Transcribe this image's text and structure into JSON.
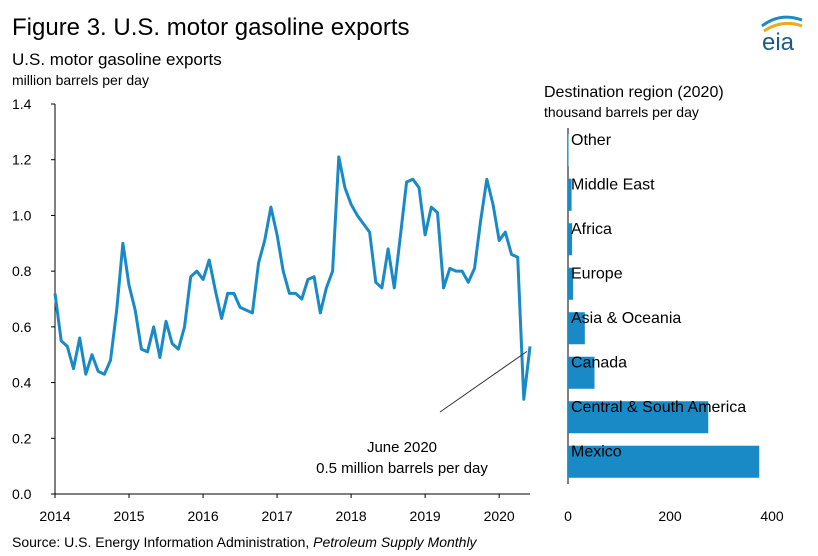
{
  "figure": {
    "title": "Figure 3. U.S. motor gasoline exports",
    "source_prefix": "Source: U.S. Energy Information Administration, ",
    "source_italic": "Petroleum Supply Monthly",
    "logo_text": "eia"
  },
  "colors": {
    "series": "#1a8ac7",
    "annotation_line": "#333333"
  },
  "chart_data": [
    {
      "type": "line",
      "title": "U.S. motor gasoline exports",
      "ylabel": "million barrels per day",
      "ylim": [
        0,
        1.4
      ],
      "yticks": [
        "0.0",
        "0.2",
        "0.4",
        "0.6",
        "0.8",
        "1.0",
        "1.2",
        "1.4"
      ],
      "xtick_labels": [
        "2014",
        "2015",
        "2016",
        "2017",
        "2018",
        "2019",
        "2020"
      ],
      "x_start": "2014-01",
      "x_end": "2020-06",
      "grid": false,
      "series": [
        {
          "values": [
            0.72,
            0.55,
            0.53,
            0.45,
            0.56,
            0.43,
            0.5,
            0.44,
            0.43,
            0.48,
            0.66,
            0.9,
            0.75,
            0.66,
            0.52,
            0.51,
            0.6,
            0.49,
            0.62,
            0.54,
            0.52,
            0.6,
            0.78,
            0.8,
            0.77,
            0.84,
            0.73,
            0.63,
            0.72,
            0.72,
            0.67,
            0.66,
            0.65,
            0.83,
            0.91,
            1.03,
            0.93,
            0.8,
            0.72,
            0.72,
            0.7,
            0.77,
            0.78,
            0.65,
            0.74,
            0.8,
            1.21,
            1.1,
            1.04,
            1.0,
            0.97,
            0.94,
            0.76,
            0.74,
            0.88,
            0.74,
            0.93,
            1.12,
            1.13,
            1.1,
            0.93,
            1.03,
            1.01,
            0.74,
            0.81,
            0.8,
            0.8,
            0.76,
            0.81,
            0.98,
            1.13,
            1.04,
            0.91,
            0.94,
            0.86,
            0.85,
            0.34,
            0.53
          ]
        }
      ],
      "annotation": {
        "line1": "June 2020",
        "line2": "0.5 million barrels per day"
      }
    },
    {
      "type": "bar",
      "orientation": "horizontal",
      "title": "Destination region (2020)",
      "xlabel": "thousand barrels per day",
      "xlim": [
        0,
        400
      ],
      "xticks": [
        "0",
        "200",
        "400"
      ],
      "categories": [
        "Other",
        "Middle East",
        "Africa",
        "Europe",
        "Asia & Oceania",
        "Canada",
        "Central & South America",
        "Mexico"
      ],
      "values": [
        1,
        7,
        8,
        10,
        33,
        52,
        275,
        375
      ]
    }
  ]
}
